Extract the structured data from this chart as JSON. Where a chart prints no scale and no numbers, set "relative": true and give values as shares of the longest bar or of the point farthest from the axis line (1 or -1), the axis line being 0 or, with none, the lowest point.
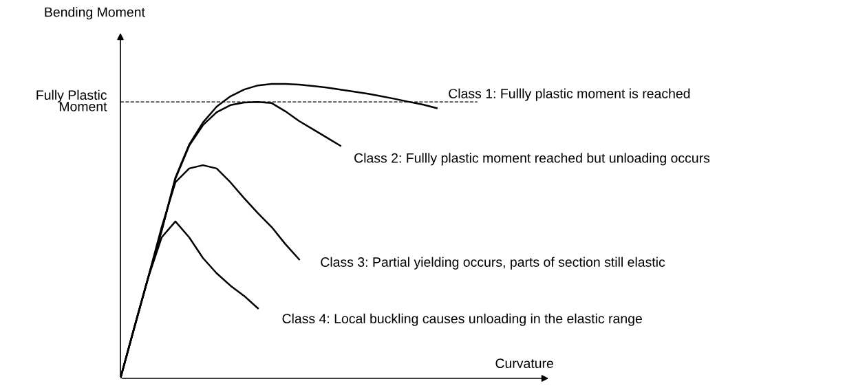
{
  "chart_data": {
    "type": "line",
    "relative": true,
    "xlabel": "Curvature",
    "ylabel": "Bending Moment",
    "legend": false,
    "marker": "none",
    "line_style": "solid",
    "categories": [
      null,
      null,
      null,
      null,
      null,
      null,
      null,
      null,
      null,
      null,
      null,
      null,
      null,
      null,
      null,
      null,
      null,
      null,
      null,
      null,
      null,
      null,
      null,
      null
    ],
    "series": [
      {
        "name": "Class 1: Fullly plastic moment is reached",
        "color": "#000000",
        "values": [
          0,
          0.171,
          0.339,
          0.502,
          0.682,
          0.794,
          0.869,
          0.923,
          0.958,
          0.981,
          0.995,
          1.0,
          1.0,
          0.998,
          0.993,
          0.988,
          0.981,
          0.974,
          0.967,
          0.958,
          0.949,
          0.939,
          0.93,
          0.918
        ]
      },
      {
        "name": "Class 2: Fullly plastic moment reached but unloading occurs",
        "color": "#000000",
        "values": [
          0,
          0.171,
          0.339,
          0.502,
          0.678,
          0.79,
          0.86,
          0.904,
          0.928,
          0.937,
          0.939,
          0.935,
          0.907,
          0.874,
          0.846,
          0.818,
          0.79,
          null,
          null,
          null,
          null,
          null,
          null,
          null
        ]
      },
      {
        "name": "Class 3: Partial yielding occurs, parts of section still elastic",
        "color": "#000000",
        "values": [
          0,
          0.171,
          0.339,
          0.514,
          0.666,
          0.713,
          0.724,
          0.713,
          0.666,
          0.612,
          0.561,
          0.514,
          0.456,
          0.404,
          null,
          null,
          null,
          null,
          null,
          null,
          null,
          null,
          null,
          null
        ]
      },
      {
        "name": "Class 4: Local buckling causes unloading in the elastic range",
        "color": "#000000",
        "values": [
          0,
          0.171,
          0.339,
          0.479,
          0.533,
          0.479,
          0.409,
          0.357,
          0.315,
          0.28,
          0.238,
          null,
          null,
          null,
          null,
          null,
          null,
          null,
          null,
          null,
          null,
          null,
          null,
          null
        ]
      }
    ],
    "ref_lines": [
      {
        "axis": "y",
        "value": 0.939,
        "label": "Fully Plastic\nMoment",
        "color": "#000000",
        "line_style": "dashed"
      }
    ]
  }
}
